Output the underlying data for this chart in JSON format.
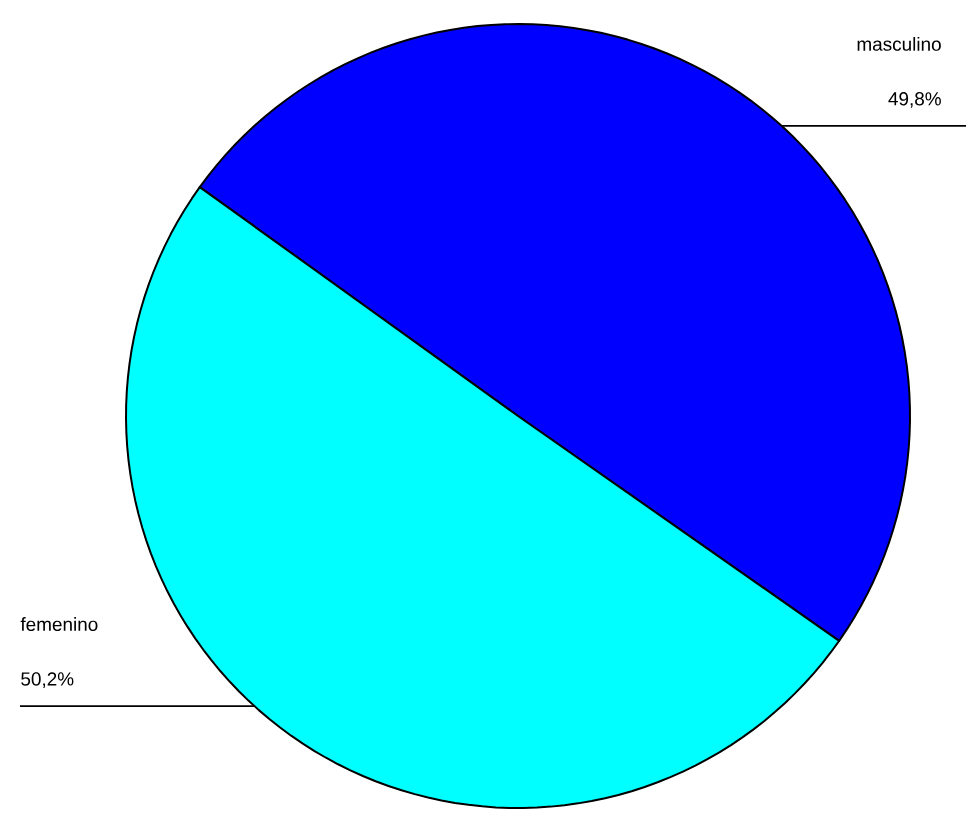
{
  "chart_data": {
    "type": "pie",
    "categories": [
      "masculino",
      "femenino"
    ],
    "values": [
      49.8,
      50.2
    ],
    "colors": [
      "#0000ff",
      "#00ffff"
    ],
    "value_labels": [
      "49,8%",
      "50,2%"
    ]
  }
}
